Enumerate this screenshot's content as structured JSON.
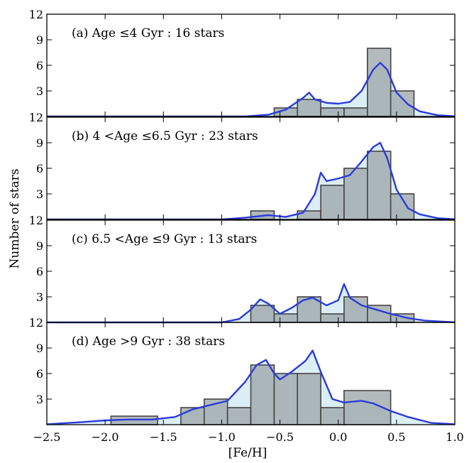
{
  "chart_data": {
    "type": "bar",
    "xlabel": "[Fe/H]",
    "ylabel": "Number of stars",
    "xlim": [
      -2.5,
      1.0
    ],
    "ylim": [
      0,
      12
    ],
    "xticks": [
      "-2.5",
      "-2.0",
      "-1.5",
      "-1.0",
      "-0.5",
      "0.0",
      "0.5",
      "1.0"
    ],
    "yticks": [
      "3",
      "6",
      "9",
      "12"
    ],
    "colors": {
      "hist_fill": "#9aa3a6",
      "hist_edge": "#444444",
      "kde_line": "#2b3bd9",
      "kde_fill": "#dbeef5"
    },
    "panels": [
      {
        "label": "(a) Age ≤4 Gyr : 16 stars",
        "bins": [
          {
            "x0": -0.55,
            "x1": -0.35,
            "count": 1
          },
          {
            "x0": -0.35,
            "x1": -0.15,
            "count": 2
          },
          {
            "x0": -0.15,
            "x1": 0.05,
            "count": 1
          },
          {
            "x0": 0.05,
            "x1": 0.25,
            "count": 1
          },
          {
            "x0": 0.25,
            "x1": 0.45,
            "count": 8
          },
          {
            "x0": 0.45,
            "x1": 0.65,
            "count": 3
          }
        ],
        "kde": [
          [
            -2.5,
            0
          ],
          [
            -0.8,
            0
          ],
          [
            -0.6,
            0.2
          ],
          [
            -0.45,
            0.8
          ],
          [
            -0.3,
            2.2
          ],
          [
            -0.25,
            2.8
          ],
          [
            -0.2,
            2.0
          ],
          [
            -0.1,
            1.6
          ],
          [
            0.0,
            1.5
          ],
          [
            0.1,
            1.7
          ],
          [
            0.2,
            3.0
          ],
          [
            0.3,
            5.5
          ],
          [
            0.36,
            6.3
          ],
          [
            0.42,
            5.5
          ],
          [
            0.5,
            2.8
          ],
          [
            0.6,
            1.4
          ],
          [
            0.7,
            0.6
          ],
          [
            0.85,
            0.15
          ],
          [
            1.0,
            0.02
          ]
        ]
      },
      {
        "label": "(b) 4 <Age ≤6.5 Gyr : 23 stars",
        "bins": [
          {
            "x0": -0.75,
            "x1": -0.55,
            "count": 1
          },
          {
            "x0": -0.35,
            "x1": -0.15,
            "count": 1
          },
          {
            "x0": -0.15,
            "x1": 0.05,
            "count": 4
          },
          {
            "x0": 0.05,
            "x1": 0.25,
            "count": 6
          },
          {
            "x0": 0.25,
            "x1": 0.45,
            "count": 8
          },
          {
            "x0": 0.45,
            "x1": 0.65,
            "count": 3
          }
        ],
        "kde": [
          [
            -2.5,
            0
          ],
          [
            -1.0,
            0
          ],
          [
            -0.8,
            0.2
          ],
          [
            -0.6,
            0.5
          ],
          [
            -0.45,
            0.3
          ],
          [
            -0.3,
            0.8
          ],
          [
            -0.2,
            3.0
          ],
          [
            -0.15,
            5.5
          ],
          [
            -0.1,
            4.5
          ],
          [
            0.0,
            4.8
          ],
          [
            0.1,
            5.2
          ],
          [
            0.2,
            6.8
          ],
          [
            0.3,
            8.5
          ],
          [
            0.36,
            9.0
          ],
          [
            0.42,
            7.2
          ],
          [
            0.5,
            3.5
          ],
          [
            0.6,
            1.3
          ],
          [
            0.7,
            0.6
          ],
          [
            0.85,
            0.15
          ],
          [
            1.0,
            0.02
          ]
        ]
      },
      {
        "label": "(c) 6.5 <Age ≤9 Gyr : 13 stars",
        "bins": [
          {
            "x0": -0.75,
            "x1": -0.55,
            "count": 2
          },
          {
            "x0": -0.55,
            "x1": -0.35,
            "count": 1
          },
          {
            "x0": -0.35,
            "x1": -0.15,
            "count": 3
          },
          {
            "x0": -0.15,
            "x1": 0.05,
            "count": 1
          },
          {
            "x0": 0.05,
            "x1": 0.25,
            "count": 3
          },
          {
            "x0": 0.25,
            "x1": 0.45,
            "count": 2
          },
          {
            "x0": 0.45,
            "x1": 0.65,
            "count": 1
          }
        ],
        "kde": [
          [
            -2.5,
            0
          ],
          [
            -1.0,
            0
          ],
          [
            -0.85,
            0.4
          ],
          [
            -0.75,
            1.5
          ],
          [
            -0.67,
            2.7
          ],
          [
            -0.6,
            2.2
          ],
          [
            -0.5,
            1.0
          ],
          [
            -0.4,
            1.7
          ],
          [
            -0.3,
            2.6
          ],
          [
            -0.22,
            2.9
          ],
          [
            -0.1,
            2.0
          ],
          [
            0.0,
            2.6
          ],
          [
            0.05,
            4.5
          ],
          [
            0.1,
            2.9
          ],
          [
            0.2,
            2.0
          ],
          [
            0.3,
            1.6
          ],
          [
            0.45,
            1.0
          ],
          [
            0.6,
            0.5
          ],
          [
            0.75,
            0.2
          ],
          [
            1.0,
            0.02
          ]
        ]
      },
      {
        "label": "(d) Age >9 Gyr : 38 stars",
        "bins": [
          {
            "x0": -1.95,
            "x1": -1.55,
            "count": 1
          },
          {
            "x0": -1.35,
            "x1": -1.15,
            "count": 2
          },
          {
            "x0": -1.15,
            "x1": -0.95,
            "count": 3
          },
          {
            "x0": -0.95,
            "x1": -0.75,
            "count": 2
          },
          {
            "x0": -0.75,
            "x1": -0.55,
            "count": 7
          },
          {
            "x0": -0.55,
            "x1": -0.35,
            "count": 6
          },
          {
            "x0": -0.35,
            "x1": -0.15,
            "count": 6
          },
          {
            "x0": -0.15,
            "x1": 0.05,
            "count": 2
          },
          {
            "x0": 0.05,
            "x1": 0.45,
            "count": 4
          }
        ],
        "kde": [
          [
            -2.5,
            0.05
          ],
          [
            -2.2,
            0.3
          ],
          [
            -2.0,
            0.5
          ],
          [
            -1.8,
            0.6
          ],
          [
            -1.6,
            0.6
          ],
          [
            -1.4,
            0.9
          ],
          [
            -1.25,
            1.8
          ],
          [
            -1.1,
            2.3
          ],
          [
            -0.95,
            2.8
          ],
          [
            -0.8,
            5.0
          ],
          [
            -0.7,
            7.0
          ],
          [
            -0.62,
            7.6
          ],
          [
            -0.55,
            6.0
          ],
          [
            -0.5,
            5.3
          ],
          [
            -0.4,
            6.2
          ],
          [
            -0.28,
            7.5
          ],
          [
            -0.22,
            8.7
          ],
          [
            -0.15,
            6.2
          ],
          [
            -0.05,
            3.0
          ],
          [
            0.05,
            2.6
          ],
          [
            0.2,
            2.8
          ],
          [
            0.3,
            2.5
          ],
          [
            0.45,
            1.6
          ],
          [
            0.6,
            0.9
          ],
          [
            0.8,
            0.2
          ],
          [
            1.0,
            0.05
          ]
        ]
      }
    ]
  }
}
